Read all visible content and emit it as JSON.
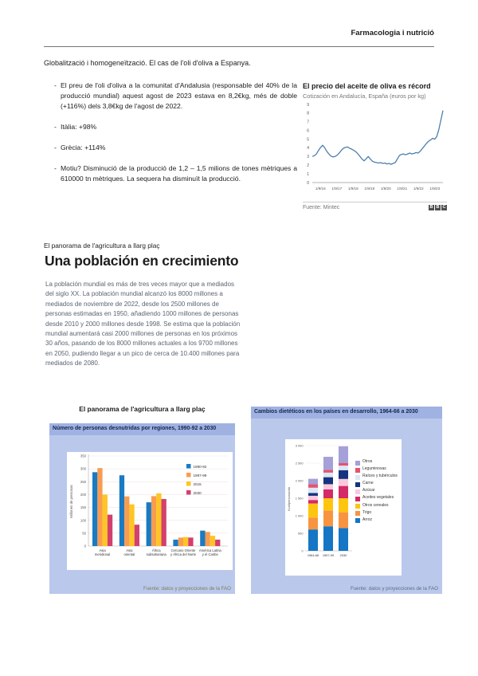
{
  "page": {
    "header_title": "Farmacologia i nutrició",
    "intro_title": "Globalització i homogeneïtzació. El cas de l'oli d'oliva a Espanya.",
    "bullets": [
      "El preu de l'oli d'oliva a la comunitat d'Andalusia (responsable del 40% de la producció mundial) aquest agost de 2023 estava en 8,2€kg, més de doble (+116%) dels 3,8€kg de l'agost de 2022.",
      "Itàlia: +98%",
      "Grècia: +114%",
      "Motiu? Disminució de la producció de 1,2 – 1,5 milions de tones mètriques a 610000 tn mètriques. La sequera ha disminuït la producció."
    ],
    "section_line": "El panorama de l'agricultura a llarg plaç",
    "article_heading": "Una población en crecimiento",
    "article_paragraph": "La población mundial es más de tres veces mayor que a mediados del siglo XX. La población mundial alcanzó los 8000 millones a mediados de noviembre de 2022, desde los 2500 millones de personas estimadas en 1950, añadiendo 1000 millones de personas desde 2010 y 2000 millones desde 1998. Se estima que la población mundial aumentará casi 2000 millones de personas en los próximos 30 años, pasando de los 8000 millones actuales a los 9700 millones en 2050, pudiendo llegar a un pico de cerca de 10.400 millones para mediados de 2080.",
    "left_chart_caption": "El panorama de l'agricultura a llarg plaç",
    "bbc_logo_letters": [
      "B",
      "B",
      "C"
    ]
  },
  "chart_data": [
    {
      "type": "line",
      "title": "El precio del aceite de oliva es récord",
      "subtitle": "Cotización en Andalucía, España (euros por kg)",
      "source": "Fuente: Mintec",
      "color": "#4d7fae",
      "ylim": [
        0,
        9
      ],
      "yticks": [
        0,
        1,
        2,
        3,
        4,
        5,
        6,
        7,
        8,
        9
      ],
      "xticklabels": [
        "1/9/16",
        "1/9/17",
        "1/9/18",
        "1/9/19",
        "1/9/20",
        "1/9/21",
        "1/9/22",
        "1/9/23"
      ],
      "values": [
        3.0,
        3.1,
        3.3,
        3.7,
        4.05,
        4.3,
        4.0,
        3.6,
        3.3,
        3.05,
        2.95,
        3.0,
        3.15,
        3.4,
        3.7,
        3.95,
        4.05,
        4.1,
        3.95,
        3.85,
        3.7,
        3.55,
        3.3,
        3.0,
        2.7,
        2.5,
        2.75,
        3.0,
        2.7,
        2.45,
        2.35,
        2.3,
        2.25,
        2.3,
        2.2,
        2.25,
        2.15,
        2.2,
        2.1,
        2.2,
        2.3,
        2.7,
        3.1,
        3.25,
        3.3,
        3.2,
        3.3,
        3.4,
        3.3,
        3.35,
        3.45,
        3.4,
        3.6,
        3.9,
        4.2,
        4.5,
        4.75,
        4.9,
        5.1,
        5.0,
        5.3,
        6.1,
        7.2,
        8.3
      ]
    },
    {
      "type": "bar",
      "title": "Número de personas desnutridas por regiones, 1990-92 a 2030",
      "ylabel": "Millones de personas",
      "ylim": [
        0,
        350
      ],
      "yticks": [
        0,
        50,
        100,
        150,
        200,
        250,
        300,
        350
      ],
      "categories": [
        [
          "Asia",
          "meridional"
        ],
        [
          "Asia",
          "oriental"
        ],
        [
          "África",
          "subsahariana"
        ],
        [
          "Cercano Oriente",
          "y África del Norte"
        ],
        [
          "América Latina",
          "y el Caribe"
        ]
      ],
      "series": [
        {
          "name": "1990-92",
          "color": "#1a7ac2",
          "values": [
            287,
            275,
            170,
            25,
            60
          ]
        },
        {
          "name": "1997-99",
          "color": "#f89c50",
          "values": [
            303,
            193,
            194,
            33,
            55
          ]
        },
        {
          "name": "2015",
          "color": "#fec525",
          "values": [
            200,
            162,
            205,
            35,
            40
          ]
        },
        {
          "name": "2030",
          "color": "#d2406e",
          "values": [
            122,
            83,
            183,
            33,
            25
          ]
        }
      ],
      "source": "Fuente: datos y proyecciones de la FAO"
    },
    {
      "type": "bar",
      "stacked": true,
      "title": "Cambios dietéticos en los países en desarrollo, 1964-66 a 2030",
      "ylabel": "Kcal/persona/día",
      "ylim": [
        0,
        3000
      ],
      "yticks": [
        0,
        500,
        1000,
        1500,
        2000,
        2500,
        3000
      ],
      "ytick_labels": [
        "0",
        "500",
        "1 000",
        "1 500",
        "2 000",
        "2 500",
        "3 000"
      ],
      "categories": [
        "1964-66",
        "1997-99",
        "2030"
      ],
      "series": [
        {
          "name": "Arroz",
          "color": "#1476c4",
          "values": [
            610,
            700,
            650
          ]
        },
        {
          "name": "Trigo",
          "color": "#f89440",
          "values": [
            340,
            450,
            450
          ]
        },
        {
          "name": "Otros cereales",
          "color": "#fec50f",
          "values": [
            400,
            350,
            400
          ]
        },
        {
          "name": "Aceites vegetales",
          "color": "#d42a68",
          "values": [
            100,
            250,
            350
          ]
        },
        {
          "name": "Azúcar",
          "color": "#f8c9dc",
          "values": [
            120,
            150,
            200
          ]
        },
        {
          "name": "Carne",
          "color": "#16337f",
          "values": [
            80,
            200,
            250
          ]
        },
        {
          "name": "Raíces y tubérculos",
          "color": "#dce7f5",
          "values": [
            150,
            130,
            130
          ]
        },
        {
          "name": "Leguminosas",
          "color": "#e2556e",
          "values": [
            100,
            80,
            70
          ]
        },
        {
          "name": "Otros",
          "color": "#a5a0d8",
          "values": [
            154,
            371,
            480
          ]
        }
      ],
      "source": "Fuente: datos y proyecciones de la FAO"
    }
  ]
}
